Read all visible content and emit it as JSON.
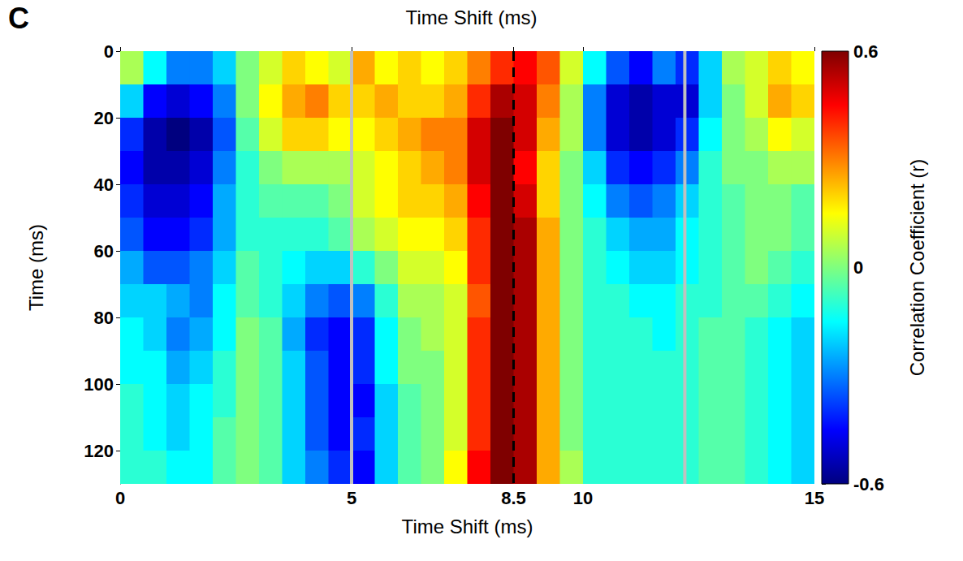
{
  "chart_data": {
    "type": "heatmap",
    "panel_label": "C",
    "title": "Time Shift (ms)",
    "x_label": "Time Shift (ms)",
    "y_label": "Time (ms)",
    "xlim": [
      0,
      15
    ],
    "xticks": [
      0,
      5,
      8.5,
      10,
      15
    ],
    "ylim": [
      0,
      130
    ],
    "yticks": [
      0,
      20,
      40,
      60,
      80,
      100,
      120
    ],
    "grid": false,
    "x_bins": [
      0,
      0.5,
      1,
      1.5,
      2,
      2.5,
      3,
      3.5,
      4,
      4.5,
      5,
      5.5,
      6,
      6.5,
      7,
      7.5,
      8,
      8.5,
      9,
      9.5,
      10,
      10.5,
      11,
      11.5,
      12,
      12.5,
      13,
      13.5,
      14,
      14.5,
      15
    ],
    "y_bins": [
      0,
      10,
      20,
      30,
      40,
      50,
      60,
      70,
      80,
      90,
      100,
      110,
      120,
      130
    ],
    "values": [
      [
        0.05,
        -0.15,
        -0.3,
        -0.3,
        -0.2,
        0,
        0.1,
        0.2,
        0.15,
        0.1,
        0.25,
        0.15,
        0.2,
        0.15,
        0.2,
        0.3,
        0.4,
        0.45,
        0.35,
        0.1,
        -0.15,
        -0.35,
        -0.45,
        -0.3,
        -0.4,
        -0.2,
        0.05,
        0.1,
        0.2,
        0.15
      ],
      [
        -0.2,
        -0.45,
        -0.5,
        -0.45,
        -0.3,
        0,
        0.15,
        0.25,
        0.3,
        0.2,
        0.2,
        0.25,
        0.2,
        0.2,
        0.25,
        0.4,
        0.55,
        0.5,
        0.3,
        0.05,
        -0.3,
        -0.5,
        -0.55,
        -0.5,
        -0.5,
        -0.2,
        0,
        0.1,
        0.25,
        0.2
      ],
      [
        -0.4,
        -0.55,
        -0.6,
        -0.55,
        -0.35,
        -0.05,
        0.1,
        0.2,
        0.2,
        0.15,
        0.15,
        0.2,
        0.25,
        0.3,
        0.3,
        0.5,
        0.6,
        0.5,
        0.25,
        0.05,
        -0.3,
        -0.5,
        -0.55,
        -0.5,
        -0.4,
        -0.15,
        0,
        0.05,
        0.15,
        0.1
      ],
      [
        -0.45,
        -0.55,
        -0.55,
        -0.5,
        -0.3,
        -0.1,
        0,
        0.05,
        0.05,
        0.05,
        0.1,
        0.15,
        0.2,
        0.25,
        0.3,
        0.5,
        0.6,
        0.45,
        0.2,
        0,
        -0.2,
        -0.4,
        -0.45,
        -0.4,
        -0.3,
        -0.1,
        0,
        0,
        0.05,
        0.05
      ],
      [
        -0.4,
        -0.5,
        -0.5,
        -0.45,
        -0.25,
        -0.1,
        -0.05,
        -0.05,
        -0.05,
        0,
        0.1,
        0.15,
        0.2,
        0.2,
        0.25,
        0.45,
        0.6,
        0.5,
        0.2,
        0,
        -0.15,
        -0.3,
        -0.35,
        -0.3,
        -0.2,
        -0.1,
        -0.05,
        0,
        0,
        -0.05
      ],
      [
        -0.35,
        -0.45,
        -0.45,
        -0.4,
        -0.25,
        -0.1,
        -0.1,
        -0.1,
        -0.1,
        -0.05,
        0.05,
        0.1,
        0.15,
        0.15,
        0.2,
        0.4,
        0.6,
        0.55,
        0.25,
        0,
        -0.1,
        -0.2,
        -0.25,
        -0.25,
        -0.15,
        -0.1,
        -0.05,
        0,
        0,
        -0.05
      ],
      [
        -0.25,
        -0.35,
        -0.35,
        -0.3,
        -0.2,
        -0.05,
        -0.1,
        -0.15,
        -0.2,
        -0.2,
        -0.1,
        0,
        0.1,
        0.1,
        0.15,
        0.4,
        0.6,
        0.55,
        0.25,
        0,
        -0.1,
        -0.15,
        -0.2,
        -0.2,
        -0.15,
        -0.1,
        -0.05,
        0,
        -0.05,
        -0.1
      ],
      [
        -0.2,
        -0.2,
        -0.25,
        -0.3,
        -0.15,
        -0.05,
        -0.1,
        -0.2,
        -0.3,
        -0.35,
        -0.3,
        -0.1,
        0.05,
        0.05,
        0.1,
        0.35,
        0.6,
        0.55,
        0.25,
        0,
        -0.1,
        -0.1,
        -0.15,
        -0.15,
        -0.1,
        -0.1,
        -0.05,
        -0.05,
        -0.1,
        -0.15
      ],
      [
        -0.15,
        -0.2,
        -0.3,
        -0.25,
        -0.15,
        0,
        -0.05,
        -0.25,
        -0.4,
        -0.45,
        -0.4,
        -0.15,
        0,
        0.05,
        0.1,
        0.4,
        0.6,
        0.55,
        0.25,
        0,
        -0.1,
        -0.1,
        -0.1,
        -0.15,
        -0.1,
        -0.05,
        -0.05,
        -0.1,
        -0.15,
        -0.2
      ],
      [
        -0.15,
        -0.15,
        -0.25,
        -0.2,
        -0.1,
        0,
        -0.05,
        -0.2,
        -0.35,
        -0.45,
        -0.4,
        -0.15,
        0,
        0,
        0.1,
        0.4,
        0.6,
        0.55,
        0.25,
        0,
        -0.1,
        -0.1,
        -0.1,
        -0.1,
        -0.1,
        -0.05,
        -0.05,
        -0.1,
        -0.15,
        -0.2
      ],
      [
        -0.1,
        -0.15,
        -0.2,
        -0.15,
        -0.1,
        0,
        -0.05,
        -0.2,
        -0.35,
        -0.45,
        -0.45,
        -0.2,
        -0.05,
        0,
        0.1,
        0.4,
        0.6,
        0.55,
        0.25,
        0,
        -0.1,
        -0.1,
        -0.1,
        -0.1,
        -0.1,
        -0.05,
        -0.05,
        -0.1,
        -0.15,
        -0.2
      ],
      [
        -0.1,
        -0.15,
        -0.2,
        -0.15,
        -0.05,
        0,
        -0.05,
        -0.2,
        -0.35,
        -0.45,
        -0.4,
        -0.2,
        -0.05,
        0,
        0.1,
        0.4,
        0.6,
        0.55,
        0.25,
        0,
        -0.1,
        -0.1,
        -0.1,
        -0.1,
        -0.1,
        -0.05,
        -0.05,
        -0.1,
        -0.15,
        -0.2
      ],
      [
        -0.1,
        -0.1,
        -0.15,
        -0.15,
        -0.05,
        0,
        -0.05,
        -0.2,
        -0.3,
        -0.4,
        -0.45,
        -0.2,
        -0.05,
        0,
        0.15,
        0.45,
        0.6,
        0.55,
        0.25,
        0.05,
        -0.1,
        -0.1,
        -0.1,
        -0.1,
        -0.1,
        -0.05,
        -0.05,
        -0.1,
        -0.15,
        -0.2
      ]
    ],
    "colorbar": {
      "label": "Correlation Coefficient (r)",
      "lim": [
        -0.6,
        0.6
      ],
      "ticks": [
        -0.6,
        0,
        0.6
      ]
    },
    "annotations": [
      {
        "x": 5,
        "color": "#c0c0c0",
        "line_style": "solid"
      },
      {
        "x": 12.2,
        "color": "#c0c0c0",
        "line_style": "solid"
      },
      {
        "x": 8.5,
        "color": "#000000",
        "line_style": "dashed"
      }
    ]
  }
}
